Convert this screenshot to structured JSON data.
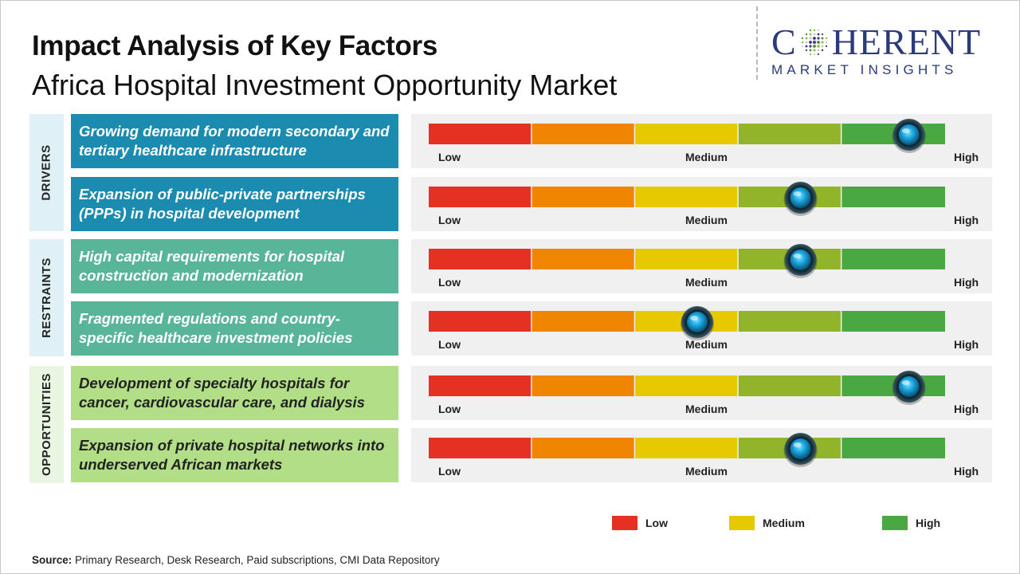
{
  "header": {
    "title": "Impact Analysis of Key Factors",
    "subtitle": "Africa Hospital Investment Opportunity Market"
  },
  "logo": {
    "main_left": "C",
    "main_right": "HERENT",
    "sub": "MARKET INSIGHTS",
    "color": "#2b3a7a"
  },
  "categories": [
    {
      "label": "DRIVERS",
      "bg": "#dff1f7"
    },
    {
      "label": "RESTRAINTS",
      "bg": "#dff1f7"
    },
    {
      "label": "OPPORTUNITIES",
      "bg": "#e8f6e2"
    }
  ],
  "scale_labels": {
    "low": "Low",
    "medium": "Medium",
    "high": "High"
  },
  "legend": [
    {
      "label": "Low",
      "color": "#e53122"
    },
    {
      "label": "Medium",
      "color": "#e6c900"
    },
    {
      "label": "High",
      "color": "#4aa843"
    }
  ],
  "segment_colors": [
    "#e53122",
    "#ef8500",
    "#e6c900",
    "#92b42a",
    "#4aa843"
  ],
  "chart_data": {
    "type": "gauge",
    "scale": [
      "Low",
      "Medium",
      "High"
    ],
    "range": [
      0,
      1
    ],
    "factors": [
      {
        "category": "DRIVERS",
        "text": "Growing demand for modern secondary and tertiary healthcare infrastructure",
        "impact": 0.93,
        "color": "#1b8bb0"
      },
      {
        "category": "DRIVERS",
        "text": "Expansion of public-private partnerships (PPPs) in hospital development",
        "impact": 0.72,
        "color": "#1b8bb0"
      },
      {
        "category": "RESTRAINTS",
        "text": "High capital requirements for hospital construction and modernization",
        "impact": 0.72,
        "color": "#58b598"
      },
      {
        "category": "RESTRAINTS",
        "text": "Fragmented regulations and country-specific healthcare investment policies",
        "impact": 0.52,
        "color": "#58b598"
      },
      {
        "category": "OPPORTUNITIES",
        "text": "Development of specialty hospitals for cancer, cardiovascular care, and dialysis",
        "impact": 0.93,
        "color": "#b2de87"
      },
      {
        "category": "OPPORTUNITIES",
        "text": "Expansion of private hospital networks into underserved African markets",
        "impact": 0.72,
        "color": "#b2de87"
      }
    ]
  },
  "source": {
    "label": "Source:",
    "text": " Primary Research, Desk Research, Paid subscriptions, CMI Data Repository"
  }
}
